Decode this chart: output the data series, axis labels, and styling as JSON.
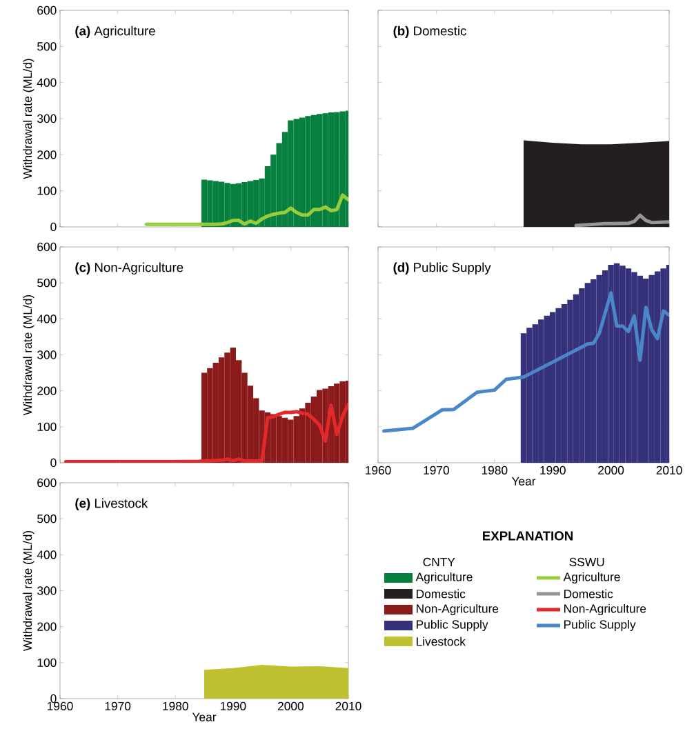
{
  "chart_data": [
    {
      "type": "bar",
      "title": "**(a)** Agriculture",
      "ylabel": "Withdrawal rate (ML/d)",
      "xlim": [
        1960,
        2010
      ],
      "ylim": [
        0,
        600
      ],
      "xticks": [
        1960,
        1970,
        1980,
        1990,
        2000,
        2010
      ],
      "yticks": [
        0,
        100,
        200,
        300,
        400,
        500,
        600
      ],
      "tick_labels": "y",
      "series": [
        {
          "type": "bar",
          "color": "#07803f",
          "x": [
            1985,
            1986,
            1987,
            1988,
            1989,
            1990,
            1991,
            1992,
            1993,
            1994,
            1995,
            1996,
            1997,
            1998,
            1999,
            2000,
            2001,
            2002,
            2003,
            2004,
            2005,
            2006,
            2007,
            2008,
            2009,
            2010
          ],
          "values": [
            131,
            129,
            127,
            125,
            122,
            119,
            121,
            124,
            127,
            130,
            134,
            168,
            200,
            232,
            263,
            295,
            299,
            303,
            307,
            310,
            313,
            315,
            317,
            318,
            320,
            322
          ]
        },
        {
          "type": "line",
          "color": "#99cc3d",
          "x": [
            1975,
            1985,
            1987,
            1988,
            1989,
            1990,
            1991,
            1992,
            1993,
            1994,
            1995,
            1996,
            1997,
            1998,
            1999,
            2000,
            2001,
            2002,
            2003,
            2004,
            2005,
            2006,
            2007,
            2008,
            2009,
            2010
          ],
          "values": [
            7,
            7,
            7,
            8,
            12,
            18,
            18,
            8,
            16,
            10,
            22,
            30,
            35,
            38,
            40,
            52,
            40,
            33,
            33,
            48,
            48,
            55,
            45,
            48,
            88,
            75
          ]
        }
      ]
    },
    {
      "type": "area",
      "title": "**(b)** Domestic",
      "xlim": [
        1960,
        2010
      ],
      "ylim": [
        0,
        600
      ],
      "xticks": [
        1960,
        1970,
        1980,
        1990,
        2000,
        2010
      ],
      "yticks": [
        0,
        100,
        200,
        300,
        400,
        500,
        600
      ],
      "tick_labels": false,
      "series": [
        {
          "type": "area",
          "color": "#231f20",
          "x": [
            1985,
            1990,
            1995,
            2000,
            2005,
            2010
          ],
          "values": [
            240,
            233,
            229,
            229,
            233,
            238
          ]
        },
        {
          "type": "line",
          "color": "#939598",
          "x": [
            1994,
            1999,
            2000,
            2003,
            2004,
            2005,
            2006,
            2007,
            2010
          ],
          "values": [
            4,
            9,
            9,
            10,
            15,
            32,
            18,
            12,
            14
          ]
        }
      ]
    },
    {
      "type": "bar",
      "title": "**(c)** Non-Agriculture",
      "ylabel": "Withdrawal rate (ML/d)",
      "xlim": [
        1960,
        2010
      ],
      "ylim": [
        0,
        600
      ],
      "xticks": [
        1960,
        1970,
        1980,
        1990,
        2000,
        2010
      ],
      "yticks": [
        0,
        100,
        200,
        300,
        400,
        500,
        600
      ],
      "tick_labels": "y",
      "series": [
        {
          "type": "bar",
          "color": "#8b1a1a",
          "x": [
            1985,
            1986,
            1987,
            1988,
            1989,
            1990,
            1991,
            1992,
            1993,
            1994,
            1995,
            1996,
            1997,
            1998,
            1999,
            2000,
            2001,
            2002,
            2003,
            2004,
            2005,
            2006,
            2007,
            2008,
            2009,
            2010
          ],
          "values": [
            250,
            263,
            278,
            293,
            306,
            320,
            285,
            250,
            214,
            179,
            145,
            140,
            135,
            130,
            125,
            120,
            130,
            151,
            167,
            184,
            202,
            206,
            213,
            220,
            226,
            228
          ]
        },
        {
          "type": "line",
          "color": "#e4292c",
          "x": [
            1961,
            1980,
            1984,
            1988,
            1989,
            1990,
            1991,
            1992,
            1995,
            1996,
            1997,
            1998,
            1999,
            2000,
            2001,
            2002,
            2003,
            2004,
            2005,
            2006,
            2007,
            2008,
            2009,
            2010
          ],
          "values": [
            3,
            3,
            4,
            7,
            10,
            6,
            10,
            5,
            5,
            125,
            128,
            135,
            140,
            140,
            142,
            138,
            135,
            121,
            105,
            60,
            160,
            79,
            130,
            163
          ]
        }
      ]
    },
    {
      "type": "bar",
      "title": "**(d)** Public Supply",
      "xlabel": "Year",
      "xlim": [
        1960,
        2010
      ],
      "ylim": [
        0,
        600
      ],
      "xticks": [
        1960,
        1970,
        1980,
        1990,
        2000,
        2010
      ],
      "yticks": [
        0,
        100,
        200,
        300,
        400,
        500,
        600
      ],
      "tick_labels": "x",
      "series": [
        {
          "type": "bar",
          "color": "#35317a",
          "x": [
            1985,
            1986,
            1987,
            1988,
            1989,
            1990,
            1991,
            1992,
            1993,
            1994,
            1995,
            1996,
            1997,
            1998,
            1999,
            2000,
            2001,
            2002,
            2003,
            2004,
            2005,
            2006,
            2007,
            2008,
            2009,
            2010
          ],
          "values": [
            360,
            375,
            385,
            398,
            409,
            419,
            430,
            441,
            453,
            468,
            485,
            500,
            510,
            522,
            535,
            550,
            555,
            548,
            540,
            530,
            520,
            512,
            522,
            532,
            540,
            550
          ]
        },
        {
          "type": "line",
          "color": "#4a87c8",
          "x": [
            1961,
            1966,
            1971,
            1973,
            1977,
            1980,
            1982,
            1985,
            1996,
            1997,
            1998,
            2000,
            2001,
            2002,
            2003,
            2004,
            2005,
            2006,
            2007,
            2008,
            2009,
            2010
          ],
          "values": [
            88,
            96,
            147,
            148,
            196,
            202,
            232,
            238,
            330,
            332,
            360,
            472,
            380,
            380,
            365,
            408,
            285,
            432,
            370,
            345,
            422,
            410
          ]
        }
      ]
    },
    {
      "type": "area",
      "title": "**(e)** Livestock",
      "xlabel": "Year",
      "ylabel": "Withdrawal rate (ML/d)",
      "xlim": [
        1960,
        2010
      ],
      "ylim": [
        0,
        600
      ],
      "xticks": [
        1960,
        1970,
        1980,
        1990,
        2000,
        2010
      ],
      "yticks": [
        0,
        100,
        200,
        300,
        400,
        500,
        600
      ],
      "series": [
        {
          "type": "area",
          "color": "#bec130",
          "x": [
            1985,
            1990,
            1995,
            2000,
            2005,
            2010
          ],
          "values": [
            80,
            85,
            94,
            89,
            90,
            85
          ]
        }
      ]
    },
    {
      "type": "other",
      "title": "EXPLANATION",
      "legend_title": "CNTY",
      "categories": [
        "Agriculture",
        "Domestic",
        "Non-Agriculture",
        "Public Supply",
        "Livestock"
      ],
      "colors": [
        "#07803f",
        "#231f20",
        "#8b1a1a",
        "#35317a",
        "#bec130"
      ]
    },
    {
      "type": "other",
      "legend_title": "SSWU",
      "categories": [
        "Agriculture",
        "Domestic",
        "Non-Agriculture",
        "Public Supply"
      ],
      "colors": [
        "#99cc3d",
        "#939598",
        "#e4292c",
        "#4a87c8"
      ]
    }
  ]
}
